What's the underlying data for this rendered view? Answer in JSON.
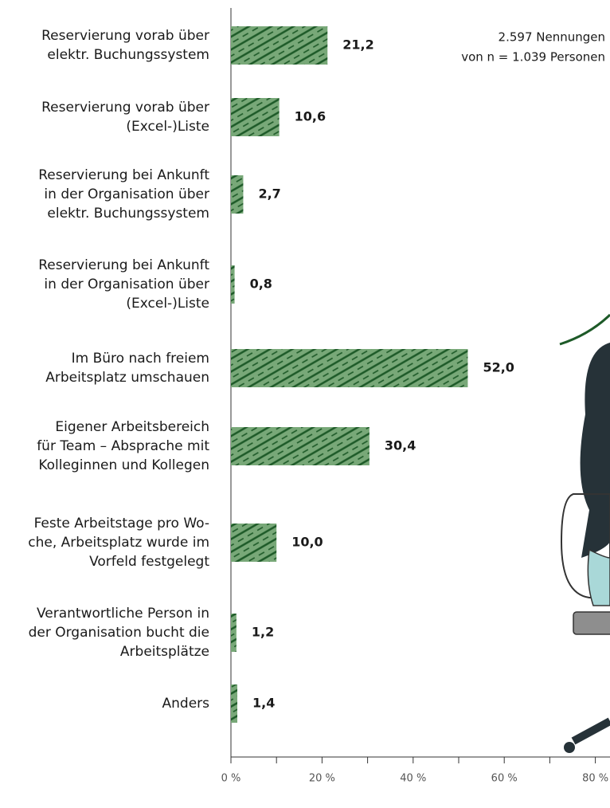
{
  "chart_data": {
    "type": "barh",
    "annotation": [
      "2.597 Nennungen",
      "von n = 1.039 Personen"
    ],
    "categories": [
      [
        "Reservierung vorab über",
        "elektr. Buchungssystem"
      ],
      [
        "Reservierung vorab über",
        "(Excel-)Liste"
      ],
      [
        "Reservierung bei Ankunft",
        "in der Organisation über",
        "elektr. Buchungssystem"
      ],
      [
        "Reservierung bei Ankunft",
        "in der Organisation über",
        "(Excel-)Liste"
      ],
      [
        "Im Büro nach freiem",
        "Arbeitsplatz umschauen"
      ],
      [
        "Eigener Arbeitsbereich",
        "für Team – Absprache mit",
        "Kolleginnen und Kollegen"
      ],
      [
        "Feste Arbeitstage pro Wo-",
        "che, Arbeitsplatz wurde im",
        "Vorfeld festgelegt"
      ],
      [
        "Verantwortliche Person in",
        "der Organisation bucht die",
        "Arbeitsplätze"
      ],
      [
        "Anders"
      ]
    ],
    "values": [
      21.2,
      10.6,
      2.7,
      0.8,
      52.0,
      30.4,
      10.0,
      1.2,
      1.4
    ],
    "value_labels": [
      "21,2",
      "10,6",
      "2,7",
      "0,8",
      "52,0",
      "30,4",
      "10,0",
      "1,2",
      "1,4"
    ],
    "color": "#78a878",
    "hatch_color": "#1d5a28",
    "xlim": [
      0,
      100
    ],
    "xticks": [
      {
        "value": 0,
        "label": "0 %"
      },
      {
        "value": 20,
        "label": "20 %"
      },
      {
        "value": 40,
        "label": "40 %"
      },
      {
        "value": 60,
        "label": "60 %"
      },
      {
        "value": 80,
        "label": "80 %"
      }
    ],
    "xminorticks": [
      10,
      30,
      50,
      70
    ]
  }
}
